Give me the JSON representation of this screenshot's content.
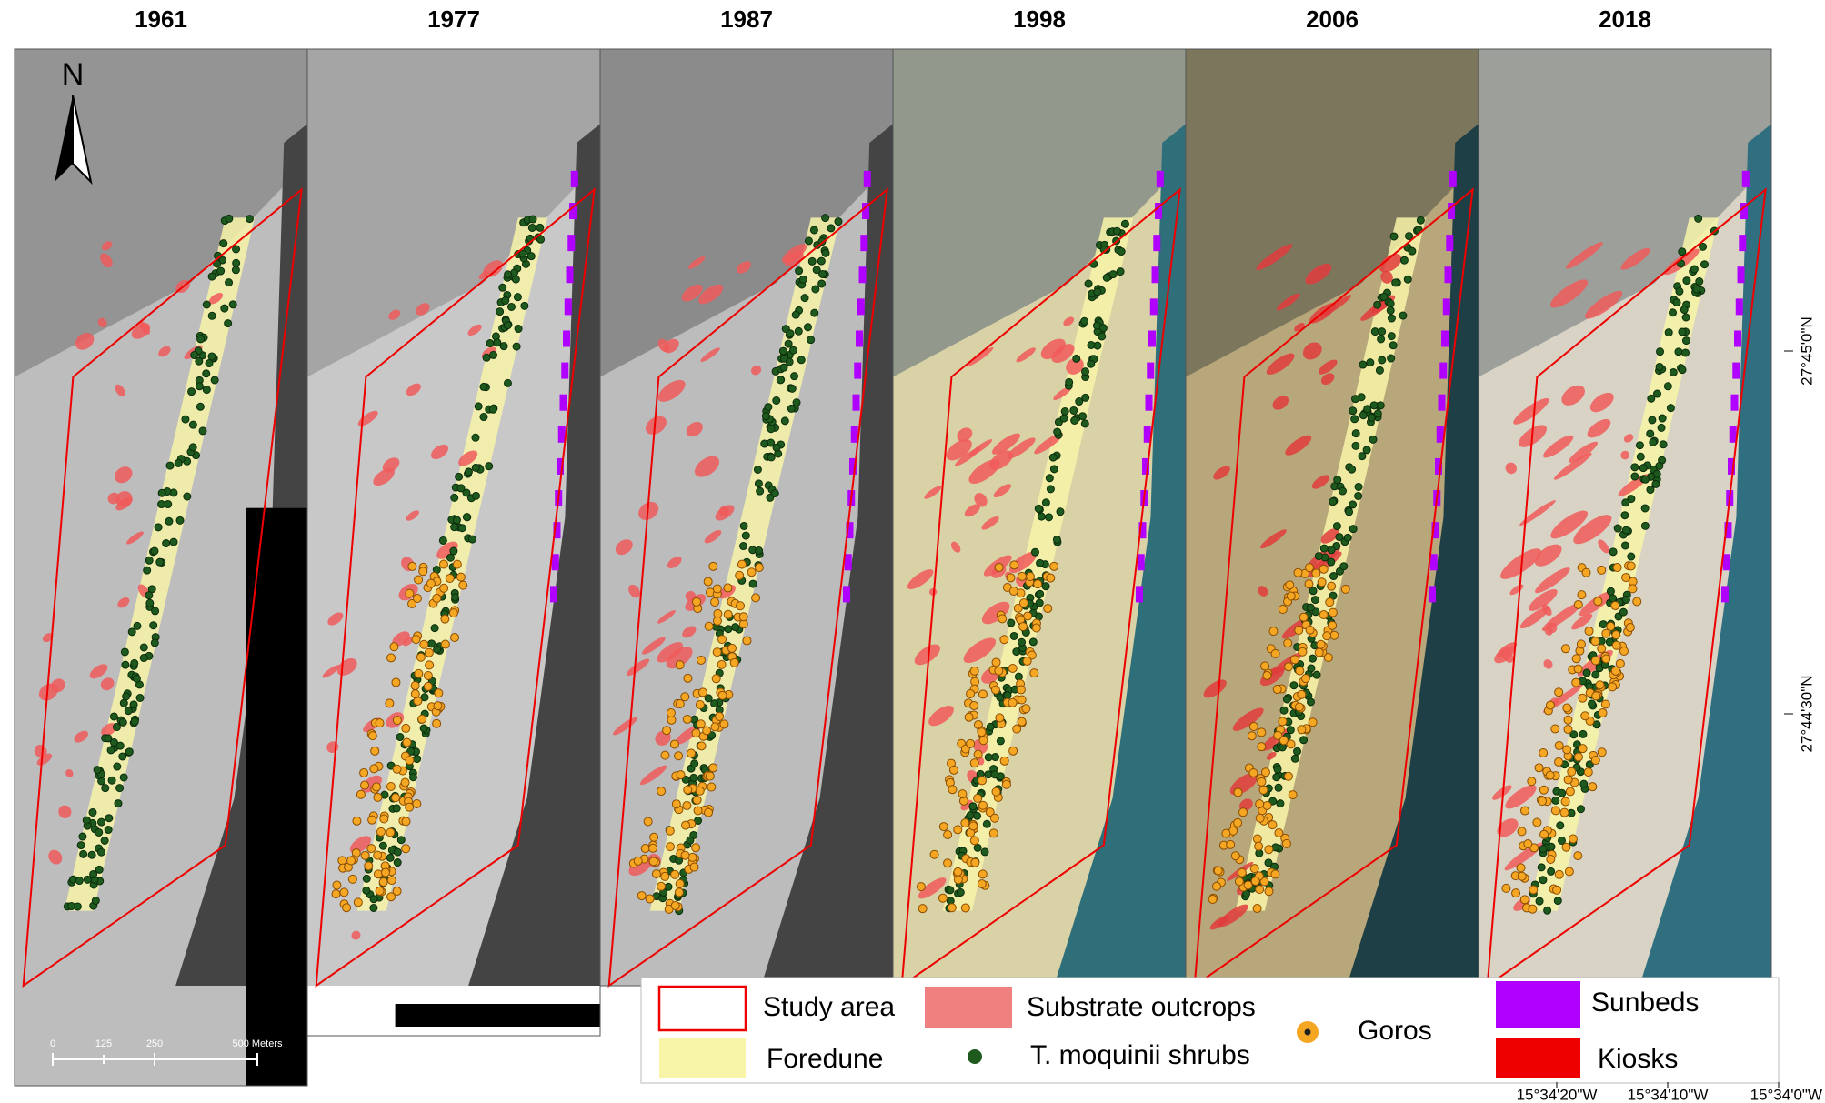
{
  "panels": [
    {
      "year": "1961"
    },
    {
      "year": "1977"
    },
    {
      "year": "1987"
    },
    {
      "year": "1998"
    },
    {
      "year": "2006"
    },
    {
      "year": "2018"
    }
  ],
  "north_label": "N",
  "scale_bar": {
    "labels": [
      "0",
      "125",
      "250",
      "500 Meters"
    ]
  },
  "legend": {
    "study_area": "Study area",
    "foredune": "Foredune",
    "substrate": "Substrate outcrops",
    "shrubs": "T. moquinii shrubs",
    "goros": "Goros",
    "sunbeds": "Sunbeds",
    "kiosks": "Kiosks"
  },
  "coordinates": {
    "latitude": [
      "27°45'0\"N",
      "27°44'30\"N"
    ],
    "longitude": [
      "15°34'20\"W",
      "15°34'10\"W",
      "15°34'0\"W"
    ]
  }
}
